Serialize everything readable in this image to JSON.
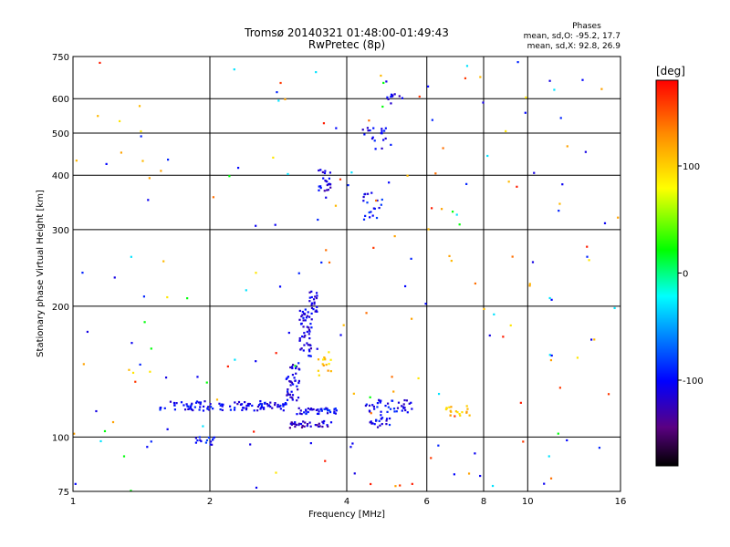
{
  "chart_data": {
    "type": "scatter",
    "title": "Tromsø 20140321 01:48:00-01:49:43",
    "subtitle": "RwPretec (8p)",
    "xlabel": "Frequency [MHz]",
    "ylabel": "Stationary phase Virtual Height [km]",
    "x_scale": "log",
    "y_scale": "log",
    "xlim": [
      1,
      16
    ],
    "ylim": [
      75,
      750
    ],
    "x_ticks": [
      1,
      2,
      4,
      6,
      8,
      10,
      16
    ],
    "x_tick_labels": [
      "1",
      "2",
      "4",
      "6",
      "8",
      "10",
      "16"
    ],
    "y_ticks": [
      75,
      100,
      200,
      300,
      400,
      500,
      600,
      750
    ],
    "y_tick_labels": [
      "75",
      "100",
      "200",
      "300",
      "400",
      "500",
      "600",
      "750"
    ],
    "grid": true,
    "phases_header": "Phases",
    "phases_line_o": "mean, sd,O: -95.2, 17.7",
    "phases_line_x": "mean, sd,X:  92.8, 26.9",
    "colorbar": {
      "label": "[deg]",
      "range": [
        -180,
        180
      ],
      "ticks": [
        100,
        0,
        -100
      ],
      "tick_labels": [
        "100",
        "0",
        "-100"
      ]
    },
    "clusters": [
      {
        "x_range": [
          1.55,
          2.95
        ],
        "h_center": 118,
        "h_spread": 3,
        "count": 110,
        "phase": -105
      },
      {
        "x_range": [
          2.95,
          3.15
        ],
        "h_center": 135,
        "h_spread": 14,
        "count": 40,
        "phase": -110
      },
      {
        "x_range": [
          3.15,
          3.35
        ],
        "h_center": 175,
        "h_spread": 22,
        "count": 50,
        "phase": -110
      },
      {
        "x_range": [
          3.3,
          3.45
        ],
        "h_center": 205,
        "h_spread": 12,
        "count": 20,
        "phase": -115
      },
      {
        "x_range": [
          3.1,
          3.85
        ],
        "h_center": 115,
        "h_spread": 2,
        "count": 40,
        "phase": -100
      },
      {
        "x_range": [
          3.0,
          3.75
        ],
        "h_center": 107,
        "h_spread": 2,
        "count": 35,
        "phase": -120
      },
      {
        "x_range": [
          1.85,
          2.05
        ],
        "h_center": 98,
        "h_spread": 2,
        "count": 15,
        "phase": -100
      },
      {
        "x_range": [
          3.45,
          3.7
        ],
        "h_center": 148,
        "h_spread": 10,
        "count": 15,
        "phase": 105
      },
      {
        "x_range": [
          3.45,
          3.7
        ],
        "h_center": 385,
        "h_spread": 30,
        "count": 25,
        "phase": -110
      },
      {
        "x_range": [
          4.5,
          5.0
        ],
        "h_center": 108,
        "h_spread": 3,
        "count": 20,
        "phase": -105
      },
      {
        "x_range": [
          4.4,
          5.6
        ],
        "h_center": 118,
        "h_spread": 4,
        "count": 40,
        "phase": -105
      },
      {
        "x_range": [
          6.6,
          7.5
        ],
        "h_center": 115,
        "h_spread": 3,
        "count": 20,
        "phase": 110
      },
      {
        "x_range": [
          4.3,
          4.8
        ],
        "h_center": 340,
        "h_spread": 25,
        "count": 20,
        "phase": -100
      },
      {
        "x_range": [
          4.3,
          5.0
        ],
        "h_center": 490,
        "h_spread": 30,
        "count": 20,
        "phase": -105
      },
      {
        "x_range": [
          4.9,
          5.3
        ],
        "h_center": 600,
        "h_spread": 15,
        "count": 10,
        "phase": -110
      }
    ],
    "scattered_points": {
      "count": 200,
      "x_range": [
        1,
        16
      ],
      "y_range": [
        75,
        750
      ]
    }
  }
}
